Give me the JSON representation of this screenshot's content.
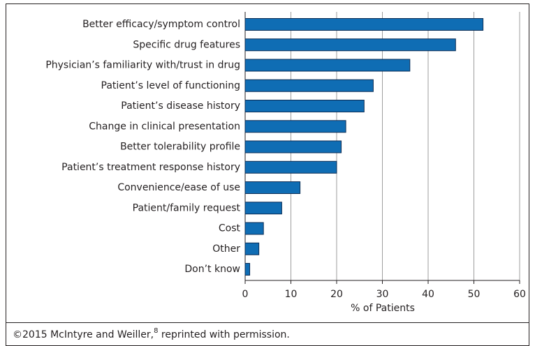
{
  "chart_data": {
    "type": "barh",
    "categories": [
      "Better efficacy/symptom control",
      "Specific drug features",
      "Physician’s familiarity with/trust in drug",
      "Patient’s level of functioning",
      "Patient’s disease history",
      "Change in clinical presentation",
      "Better tolerability profile",
      "Patient’s treatment response history",
      "Convenience/ease of use",
      "Patient/family request",
      "Cost",
      "Other",
      "Don’t know"
    ],
    "values": [
      52,
      46,
      36,
      28,
      26,
      22,
      21,
      20,
      12,
      8,
      4,
      3,
      1
    ],
    "color": "#0f6db4",
    "xlabel": "% of Patients",
    "xlim": [
      0,
      60
    ],
    "xticks": [
      0,
      10,
      20,
      30,
      40,
      50,
      60
    ],
    "grid": true,
    "source": {
      "text": "©2015 McIntyre and Weiller,",
      "ref": "8",
      "tail": " reprinted with permission."
    }
  }
}
